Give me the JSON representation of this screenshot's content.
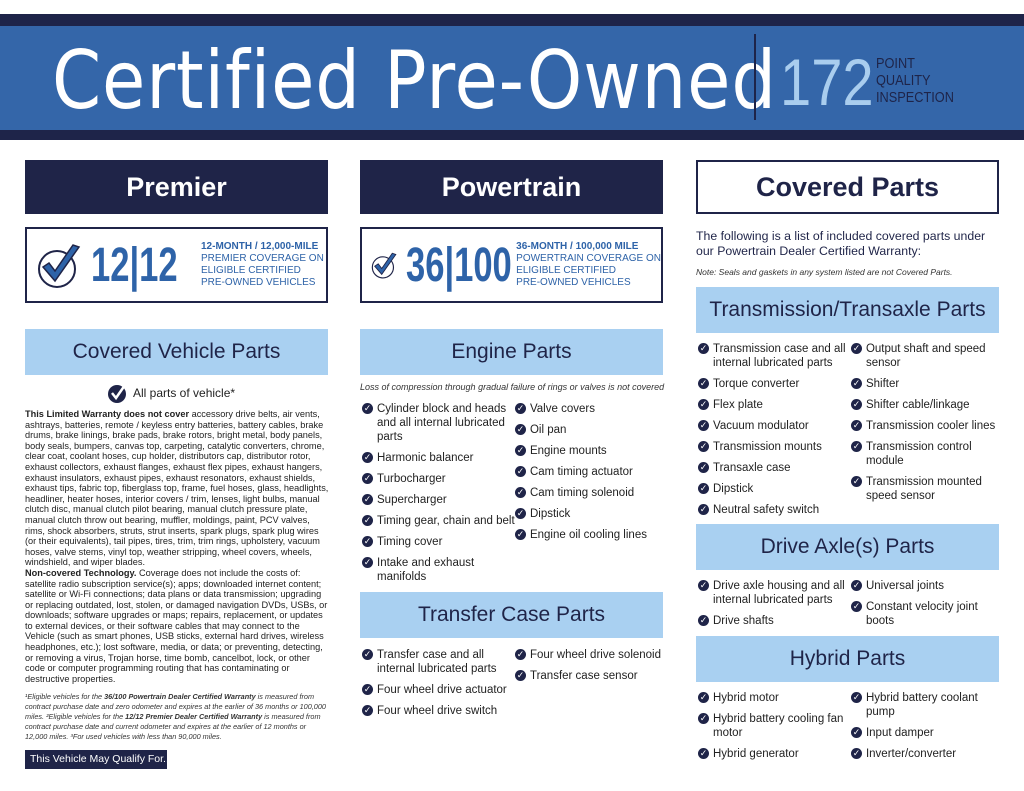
{
  "header": {
    "title": "Certified Pre-Owned",
    "points": "172",
    "points_label": [
      "POINT",
      "QUALITY",
      "INSPECTION"
    ]
  },
  "premier": {
    "title": "Premier",
    "big": "12|12",
    "line1": "12-MONTH / 12,000-MILE",
    "line2": "PREMIER COVERAGE ON",
    "line3": "ELIGIBLE CERTIFIED",
    "line4": "PRE-OWNED VEHICLES"
  },
  "powertrain": {
    "title": "Powertrain",
    "big": "36|100",
    "line1": "36-MONTH / 100,000 MILE",
    "line2": "POWERTRAIN COVERAGE ON",
    "line3": "ELIGIBLE CERTIFIED",
    "line4": "PRE-OWNED VEHICLES"
  },
  "covered_vehicle": {
    "title": "Covered Vehicle Parts",
    "all_parts": "All parts of vehicle*",
    "not_cover_bold": "This Limited Warranty does not cover",
    "not_cover_text": " accessory drive belts, air vents, ashtrays, batteries, remote / keyless entry batteries, battery cables, brake drums, brake linings, brake pads, brake rotors, bright metal, body panels, body seals, bumpers, canvas top, carpeting, catalytic converters, chrome, clear coat, coolant hoses, cup holder, distributors cap, distributor rotor, exhaust collectors, exhaust flanges, exhaust flex pipes, exhaust hangers, exhaust insulators, exhaust pipes, exhaust resonators, exhaust shields, exhaust tips, fabric top, fiberglass top, frame, fuel hoses, glass, headlights, headliner, heater hoses, interior covers / trim, lenses, light bulbs, manual clutch disc, manual clutch pilot bearing, manual clutch pressure plate, manual clutch throw out bearing, muffler, moldings, paint, PCV valves, rims, shock absorbers, struts, strut inserts, spark plugs, spark plug wires (or their equivalents), tail pipes, tires, trim, trim rings, upholstery, vacuum hoses, valve stems, vinyl top, weather stripping, wheel covers, wheels, windshield, and wiper blades.",
    "tech_bold": "Non-covered Technology.",
    "tech_text": " Coverage does not include the costs of: satellite radio subscription service(s); apps; downloaded internet content; satellite or Wi-Fi connections; data plans or data transmission; upgrading or replacing outdated, lost, stolen, or damaged navigation DVDs, USBs, or downloads; software upgrades or maps; repairs, replacement, or updates to external devices, or their software cables that may connect to the Vehicle (such as smart phones, USB sticks, external hard drives, wireless headphones, etc.); lost software, media, or data; or preventing, detecting, or removing a virus, Trojan horse, time bomb, cancelbot, lock, or other code or computer programming routing that has contaminating or destructive properties.",
    "fn1a": "¹Eligible vehicles for the ",
    "fn1b": "36/100 Powertrain Dealer Certified Warranty",
    "fn1c": " is measured from contract purchase date and zero odometer and expires at the earlier of 36 months or 100,000 miles. ²Eligible vehicles for the ",
    "fn2b": "12/12 Premier Dealer Certified Warranty",
    "fn2c": " is measured from contract purchase date and current odometer and expires at the earlier of 12 months or 12,000 miles. ³For used vehicles with less than 90,000 miles.",
    "qualify": "This Vehicle May Qualify For..."
  },
  "engine": {
    "title": "Engine Parts",
    "note": "Loss of compression through gradual failure of rings or valves is not covered",
    "col1": [
      "Cylinder block and heads and all internal lubricated parts",
      "Harmonic balancer",
      "Turbocharger",
      "Supercharger",
      "Timing gear, chain and belt",
      "Timing cover",
      "Intake and exhaust manifolds"
    ],
    "col2": [
      "Valve covers",
      "Oil pan",
      "Engine mounts",
      "Cam timing actuator",
      "Cam timing solenoid",
      "Dipstick",
      "Engine oil cooling lines"
    ]
  },
  "transfer": {
    "title": "Transfer Case Parts",
    "col1": [
      "Transfer case and all internal lubricated parts",
      "Four wheel drive actuator",
      "Four wheel drive switch"
    ],
    "col2": [
      "Four wheel drive solenoid",
      "Transfer case sensor"
    ]
  },
  "covered_parts": {
    "title": "Covered Parts",
    "intro": "The following is a list of included covered parts under our Powertrain Dealer Certified Warranty:",
    "note": "Note: Seals and gaskets in any system listed are not Covered Parts."
  },
  "transmission": {
    "title": "Transmission/Transaxle Parts",
    "col1": [
      "Transmission case and all internal lubricated parts",
      "Torque converter",
      "Flex plate",
      "Vacuum modulator",
      "Transmission mounts",
      "Transaxle case",
      "Dipstick",
      "Neutral safety switch"
    ],
    "col2": [
      "Output shaft and speed sensor",
      "Shifter",
      "Shifter cable/linkage",
      "Transmission cooler lines",
      "Transmission control module",
      "Transmission mounted speed sensor"
    ]
  },
  "drive_axle": {
    "title": "Drive Axle(s) Parts",
    "col1": [
      "Drive axle housing and all internal lubricated parts",
      "Drive shafts"
    ],
    "col2": [
      "Universal joints",
      "Constant velocity joint boots"
    ]
  },
  "hybrid": {
    "title": "Hybrid Parts",
    "col1": [
      "Hybrid motor",
      "Hybrid battery cooling fan motor",
      "Hybrid generator"
    ],
    "col2": [
      "Hybrid battery coolant pump",
      "Input damper",
      "Inverter/converter"
    ]
  },
  "colors": {
    "navy": "#1f2448",
    "blue": "#3466a9",
    "light_blue": "#a9d0f1"
  }
}
